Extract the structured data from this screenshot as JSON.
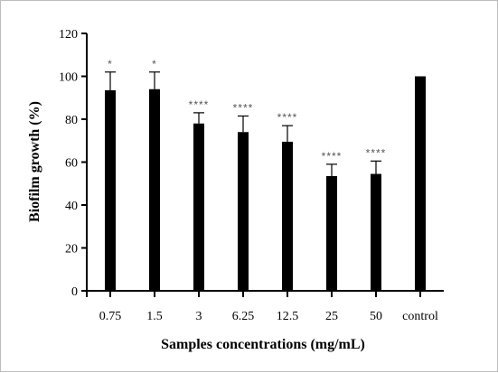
{
  "chart_data": {
    "type": "bar",
    "categories": [
      "0.75",
      "1.5",
      "3",
      "6.25",
      "12.5",
      "25",
      "50",
      "control"
    ],
    "values": [
      93.5,
      94,
      78,
      74,
      69.5,
      53.5,
      54.5,
      100
    ],
    "error_upper": [
      102,
      102,
      83,
      81.5,
      77,
      59,
      60.5,
      100
    ],
    "significance": [
      "*",
      "*",
      "****",
      "****",
      "****",
      "****",
      "****",
      ""
    ],
    "xlabel": "Samples concentrations (mg/mL)",
    "ylabel": "Biofilm growth (%)",
    "ylim": [
      0,
      120
    ],
    "yticks": [
      "0",
      "20",
      "40",
      "60",
      "80",
      "100",
      "120"
    ],
    "bar_color": "#000000",
    "grid": false
  }
}
